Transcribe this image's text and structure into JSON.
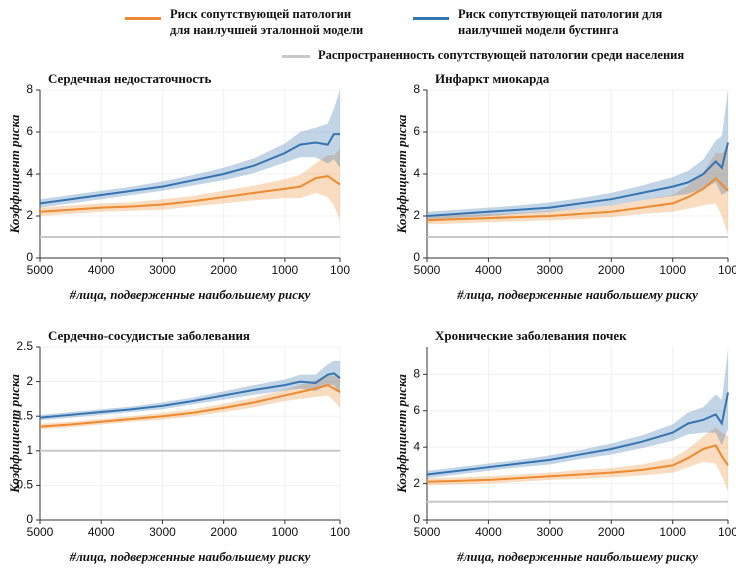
{
  "chart_data": [
    {
      "type": "line",
      "title": "Сердечная недостаточность",
      "xlabel": "#лица, подверженные наибольшему риску",
      "ylabel": "Коэффициент риска",
      "x": [
        5000,
        4500,
        4000,
        3500,
        3000,
        2500,
        2000,
        1500,
        1000,
        750,
        500,
        300,
        200,
        100
      ],
      "xlim": [
        5000,
        100
      ],
      "xticks": [
        5000,
        4000,
        3000,
        2000,
        1000,
        100
      ],
      "ylim": [
        0,
        8
      ],
      "yticks": [
        0,
        2,
        4,
        6,
        8
      ],
      "grid": true,
      "series": [
        {
          "name": "Риск сопутствующей патологии для наилучшей эталонной модели",
          "color": "#ee8a2f",
          "values": [
            2.2,
            2.3,
            2.4,
            2.45,
            2.55,
            2.7,
            2.9,
            3.1,
            3.3,
            3.4,
            3.8,
            3.9,
            3.7,
            3.5
          ],
          "lower": [
            2.0,
            2.1,
            2.2,
            2.25,
            2.3,
            2.45,
            2.6,
            2.75,
            2.85,
            2.85,
            3.1,
            2.9,
            2.5,
            1.8
          ],
          "upper": [
            2.4,
            2.5,
            2.6,
            2.65,
            2.8,
            2.95,
            3.2,
            3.45,
            3.75,
            3.95,
            4.5,
            4.9,
            4.9,
            5.2
          ]
        },
        {
          "name": "Риск сопутствующей патологии для наилучшей модели бустинга",
          "color": "#3574b0",
          "values": [
            2.6,
            2.8,
            3.0,
            3.2,
            3.4,
            3.7,
            4.0,
            4.4,
            5.0,
            5.4,
            5.5,
            5.4,
            5.9,
            5.9
          ],
          "lower": [
            2.4,
            2.6,
            2.8,
            3.0,
            3.2,
            3.45,
            3.7,
            4.05,
            4.55,
            4.8,
            4.8,
            4.5,
            4.7,
            4.3
          ],
          "upper": [
            2.8,
            3.0,
            3.2,
            3.4,
            3.65,
            3.95,
            4.3,
            4.75,
            5.45,
            6.0,
            6.2,
            6.4,
            7.1,
            8.0
          ]
        },
        {
          "name": "Распространенность сопутствующей патологии среди населения",
          "color": "#c8c8c8",
          "values": [
            1,
            1,
            1,
            1,
            1,
            1,
            1,
            1,
            1,
            1,
            1,
            1,
            1,
            1
          ]
        }
      ]
    },
    {
      "type": "line",
      "title": "Инфаркт миокарда",
      "xlabel": "#лица, подверженные наибольшему риску",
      "ylabel": "Коэффициент риска",
      "x": [
        5000,
        4500,
        4000,
        3500,
        3000,
        2500,
        2000,
        1500,
        1000,
        750,
        500,
        300,
        200,
        100
      ],
      "xlim": [
        5000,
        100
      ],
      "xticks": [
        5000,
        4000,
        3000,
        2000,
        1000,
        100
      ],
      "ylim": [
        0,
        8
      ],
      "yticks": [
        0,
        2,
        4,
        6,
        8
      ],
      "grid": true,
      "series": [
        {
          "color": "#ee8a2f",
          "values": [
            1.8,
            1.85,
            1.9,
            1.95,
            2.0,
            2.1,
            2.2,
            2.4,
            2.6,
            2.9,
            3.3,
            3.8,
            3.5,
            3.2
          ],
          "lower": [
            1.6,
            1.65,
            1.7,
            1.75,
            1.8,
            1.85,
            1.95,
            2.1,
            2.2,
            2.35,
            2.5,
            2.6,
            2.0,
            1.1
          ],
          "upper": [
            2.0,
            2.05,
            2.1,
            2.15,
            2.25,
            2.35,
            2.5,
            2.75,
            3.0,
            3.45,
            4.1,
            5.0,
            5.0,
            5.3
          ]
        },
        {
          "color": "#3574b0",
          "values": [
            2.0,
            2.1,
            2.2,
            2.3,
            2.4,
            2.6,
            2.8,
            3.1,
            3.4,
            3.6,
            4.0,
            4.6,
            4.3,
            5.5
          ],
          "lower": [
            1.8,
            1.9,
            2.0,
            2.1,
            2.2,
            2.35,
            2.5,
            2.75,
            2.95,
            3.05,
            3.3,
            3.6,
            3.0,
            3.2
          ],
          "upper": [
            2.2,
            2.3,
            2.4,
            2.5,
            2.65,
            2.85,
            3.1,
            3.45,
            3.85,
            4.15,
            4.7,
            5.6,
            5.8,
            8.0
          ]
        },
        {
          "color": "#c8c8c8",
          "values": [
            1,
            1,
            1,
            1,
            1,
            1,
            1,
            1,
            1,
            1,
            1,
            1,
            1,
            1
          ]
        }
      ]
    },
    {
      "type": "line",
      "title": "Сердечно-сосудистые заболевания",
      "xlabel": "#лица, подверженные наибольшему риску",
      "ylabel": "Коэффициент риска",
      "x": [
        5000,
        4500,
        4000,
        3500,
        3000,
        2500,
        2000,
        1500,
        1000,
        750,
        500,
        300,
        200,
        100
      ],
      "xlim": [
        5000,
        100
      ],
      "xticks": [
        5000,
        4000,
        3000,
        2000,
        1000,
        100
      ],
      "ylim": [
        0,
        2.5
      ],
      "yticks": [
        0,
        0.5,
        1,
        1.5,
        2,
        2.5
      ],
      "grid": true,
      "series": [
        {
          "color": "#ee8a2f",
          "values": [
            1.35,
            1.38,
            1.42,
            1.46,
            1.5,
            1.55,
            1.62,
            1.7,
            1.8,
            1.85,
            1.9,
            1.95,
            1.9,
            1.85
          ],
          "lower": [
            1.31,
            1.34,
            1.38,
            1.42,
            1.45,
            1.5,
            1.56,
            1.63,
            1.72,
            1.75,
            1.78,
            1.8,
            1.72,
            1.62
          ],
          "upper": [
            1.39,
            1.42,
            1.46,
            1.5,
            1.55,
            1.6,
            1.68,
            1.77,
            1.88,
            1.95,
            2.02,
            2.1,
            2.08,
            2.08
          ]
        },
        {
          "color": "#3574b0",
          "values": [
            1.48,
            1.52,
            1.56,
            1.6,
            1.65,
            1.72,
            1.8,
            1.88,
            1.95,
            2.0,
            1.98,
            2.1,
            2.12,
            2.05
          ],
          "lower": [
            1.44,
            1.48,
            1.52,
            1.56,
            1.6,
            1.67,
            1.74,
            1.81,
            1.87,
            1.9,
            1.86,
            1.95,
            1.95,
            1.82
          ],
          "upper": [
            1.52,
            1.56,
            1.6,
            1.64,
            1.7,
            1.77,
            1.86,
            1.95,
            2.03,
            2.1,
            2.1,
            2.25,
            2.3,
            2.3
          ]
        },
        {
          "color": "#c8c8c8",
          "values": [
            1,
            1,
            1,
            1,
            1,
            1,
            1,
            1,
            1,
            1,
            1,
            1,
            1,
            1
          ]
        }
      ]
    },
    {
      "type": "line",
      "title": "Хронические заболевания почек",
      "xlabel": "#лица, подверженные наибольшему риску",
      "ylabel": "Коэффициент риска",
      "x": [
        5000,
        4500,
        4000,
        3500,
        3000,
        2500,
        2000,
        1500,
        1000,
        750,
        500,
        300,
        200,
        100
      ],
      "xlim": [
        5000,
        100
      ],
      "xticks": [
        5000,
        4000,
        3000,
        2000,
        1000,
        100
      ],
      "ylim": [
        0,
        9.5
      ],
      "yticks": [
        0,
        2,
        4,
        6,
        8
      ],
      "grid": true,
      "series": [
        {
          "color": "#ee8a2f",
          "values": [
            2.1,
            2.15,
            2.2,
            2.3,
            2.4,
            2.5,
            2.6,
            2.75,
            3.0,
            3.4,
            3.9,
            4.1,
            3.5,
            3.0
          ],
          "lower": [
            1.9,
            1.95,
            2.0,
            2.1,
            2.2,
            2.25,
            2.35,
            2.45,
            2.6,
            2.9,
            3.2,
            3.1,
            2.4,
            1.6
          ],
          "upper": [
            2.3,
            2.35,
            2.4,
            2.5,
            2.6,
            2.75,
            2.85,
            3.05,
            3.4,
            3.9,
            4.6,
            5.1,
            4.8,
            4.6
          ]
        },
        {
          "color": "#3574b0",
          "values": [
            2.5,
            2.7,
            2.9,
            3.1,
            3.3,
            3.6,
            3.9,
            4.3,
            4.8,
            5.3,
            5.5,
            5.8,
            5.3,
            7.0
          ],
          "lower": [
            2.3,
            2.5,
            2.7,
            2.9,
            3.05,
            3.35,
            3.6,
            3.95,
            4.35,
            4.7,
            4.8,
            4.8,
            4.1,
            5.0
          ],
          "upper": [
            2.7,
            2.9,
            3.1,
            3.3,
            3.55,
            3.85,
            4.2,
            4.65,
            5.25,
            5.9,
            6.2,
            6.9,
            6.6,
            9.3
          ]
        },
        {
          "color": "#c8c8c8",
          "values": [
            1,
            1,
            1,
            1,
            1,
            1,
            1,
            1,
            1,
            1,
            1,
            1,
            1,
            1
          ]
        }
      ]
    }
  ]
}
